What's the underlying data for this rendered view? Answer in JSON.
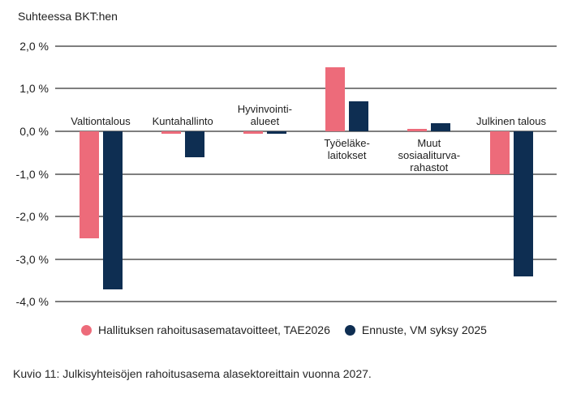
{
  "header": {
    "title": "Suhteessa BKT:hen"
  },
  "caption": "Kuvio 11: Julkisyhteisöjen rahoitusasema alasektoreittain vuonna 2027.",
  "colors": {
    "target_series": "#ED6B7A",
    "forecast_series": "#0E2E52",
    "gridline": "#7E7E7E",
    "text": "#1E1E1E"
  },
  "chart_data": {
    "type": "bar",
    "title": "Suhteessa BKT:hen",
    "categories": [
      "Valtiontalous",
      "Kuntahallinto",
      "Hyvinvointialueet",
      "Työeläkelaitokset",
      "Muut sosiaaliturvarahastot",
      "Julkinen talous"
    ],
    "category_labels": [
      {
        "lines": [
          "Valtiontalous"
        ],
        "side": "above"
      },
      {
        "lines": [
          "Kuntahallinto"
        ],
        "side": "above"
      },
      {
        "lines": [
          "Hyvinvointi-",
          "alueet"
        ],
        "side": "above"
      },
      {
        "lines": [
          "Työeläke-",
          "laitokset"
        ],
        "side": "below"
      },
      {
        "lines": [
          "Muut",
          "sosiaaliturva-",
          "rahastot"
        ],
        "side": "below"
      },
      {
        "lines": [
          "Julkinen talous"
        ],
        "side": "above"
      }
    ],
    "series": [
      {
        "name": "Hallituksen rahoitusasematavoitteet, TAE2026",
        "color": "#ED6B7A",
        "values": [
          -2.5,
          -0.05,
          -0.05,
          1.5,
          0.05,
          -1.0
        ]
      },
      {
        "name": "Ennuste, VM syksy 2025",
        "color": "#0E2E52",
        "values": [
          -3.7,
          -0.6,
          -0.05,
          0.7,
          0.2,
          -3.4
        ]
      }
    ],
    "xlabel": "",
    "ylabel": "Suhteessa BKT:hen",
    "ylim": [
      -4.0,
      2.0
    ],
    "yticks": [
      2.0,
      1.0,
      0.0,
      -1.0,
      -2.0,
      -3.0,
      -4.0
    ],
    "ytick_labels": [
      "2,0 %",
      "1,0 %",
      "0,0 %",
      "-1,0 %",
      "-2,0 %",
      "-3,0 %",
      "-4,0 %"
    ],
    "grid": true,
    "legend_position": "bottom"
  }
}
